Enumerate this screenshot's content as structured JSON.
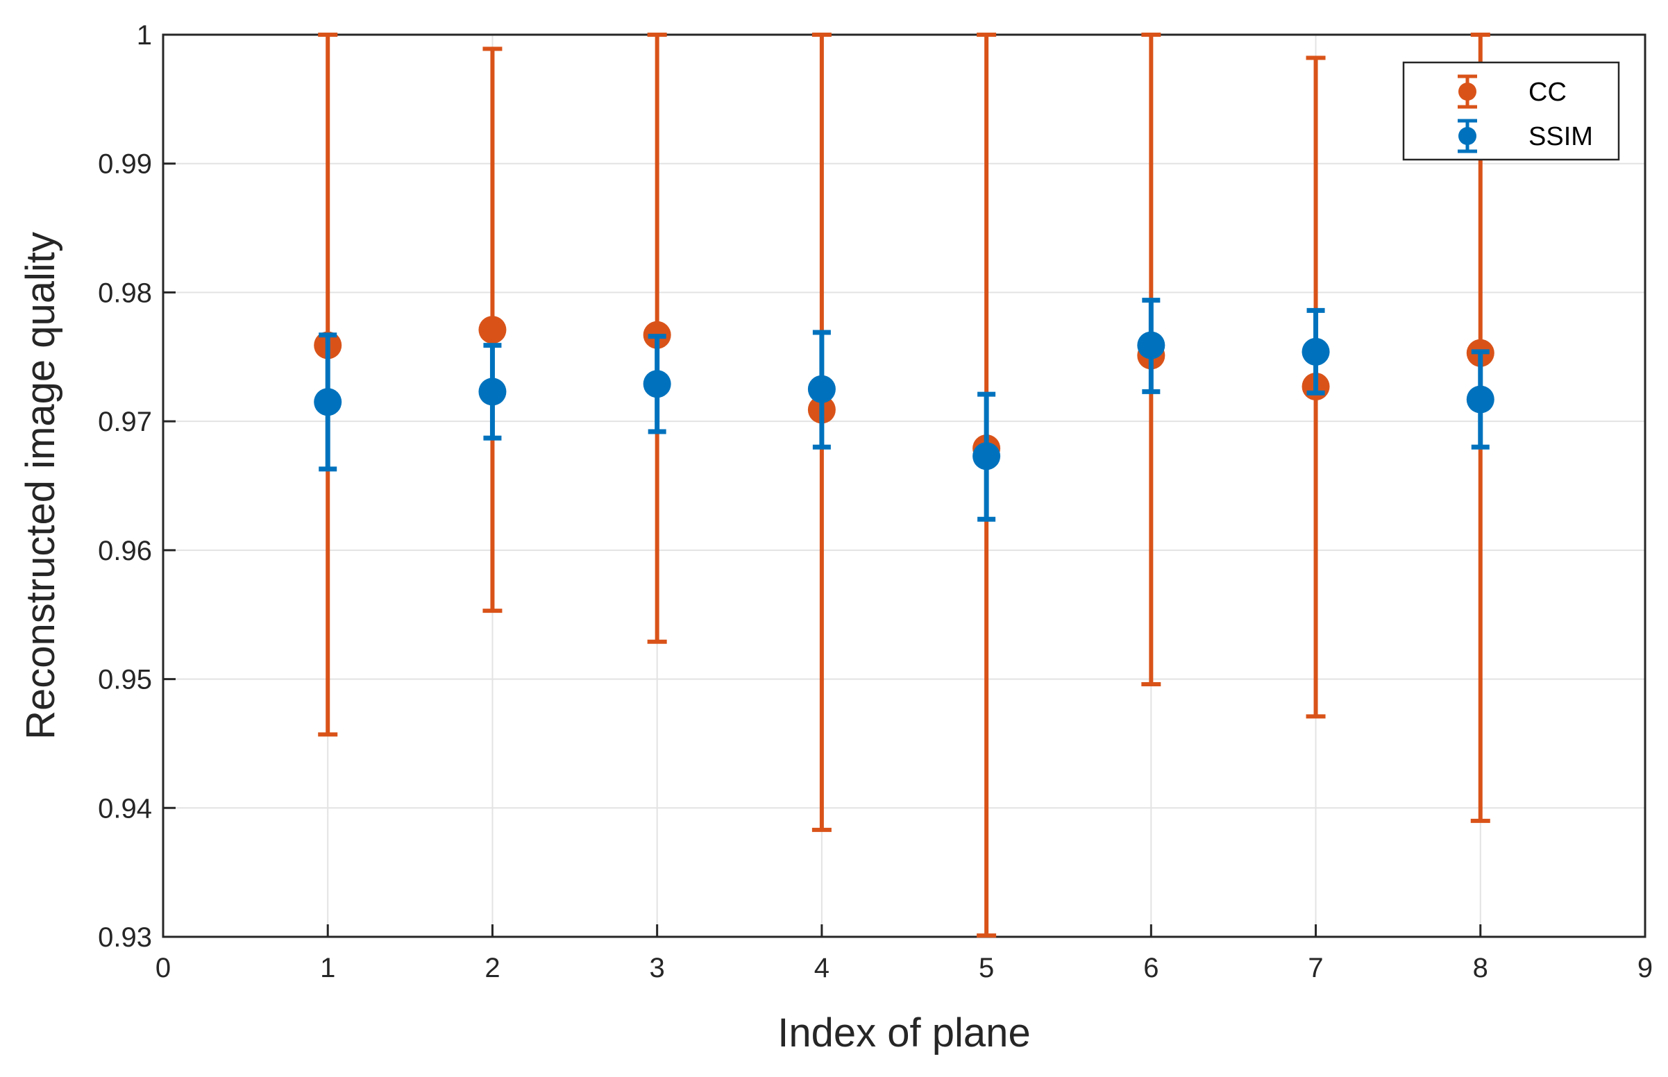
{
  "chart_data": {
    "type": "scatter",
    "title": "",
    "xlabel": "Index of plane",
    "ylabel": "Reconstructed image quality",
    "xlim": [
      0,
      9
    ],
    "ylim": [
      0.93,
      1.0
    ],
    "xticks": [
      0,
      1,
      2,
      3,
      4,
      5,
      6,
      7,
      8,
      9
    ],
    "xtick_labels": [
      "0",
      "1",
      "2",
      "3",
      "4",
      "5",
      "6",
      "7",
      "8",
      "9"
    ],
    "yticks": [
      0.93,
      0.94,
      0.95,
      0.96,
      0.97,
      0.98,
      0.99,
      1.0
    ],
    "ytick_labels": [
      "0.93",
      "0.94",
      "0.95",
      "0.96",
      "0.97",
      "0.98",
      "0.99",
      "1"
    ],
    "grid": true,
    "legend_position": "top-right",
    "error_bars": true,
    "series": [
      {
        "name": "CC",
        "color": "#D95319",
        "x": [
          1,
          2,
          3,
          4,
          5,
          6,
          7,
          8
        ],
        "values": [
          0.9759,
          0.9771,
          0.9767,
          0.9709,
          0.9679,
          0.9751,
          0.9727,
          0.9753
        ],
        "lower": [
          0.9457,
          0.9553,
          0.9529,
          0.9383,
          0.9301,
          0.9496,
          0.9471,
          0.939
        ],
        "upper": [
          1.0,
          0.9989,
          1.0,
          1.0,
          1.0,
          1.0,
          0.9982,
          1.0
        ]
      },
      {
        "name": "SSIM",
        "color": "#0072BD",
        "x": [
          1,
          2,
          3,
          4,
          5,
          6,
          7,
          8
        ],
        "values": [
          0.9715,
          0.9723,
          0.9729,
          0.9725,
          0.9673,
          0.9759,
          0.9754,
          0.9717
        ],
        "lower": [
          0.9663,
          0.9687,
          0.9692,
          0.968,
          0.9624,
          0.9723,
          0.9722,
          0.968
        ],
        "upper": [
          0.9767,
          0.9759,
          0.9766,
          0.9769,
          0.9721,
          0.9794,
          0.9786,
          0.9754
        ]
      }
    ]
  }
}
